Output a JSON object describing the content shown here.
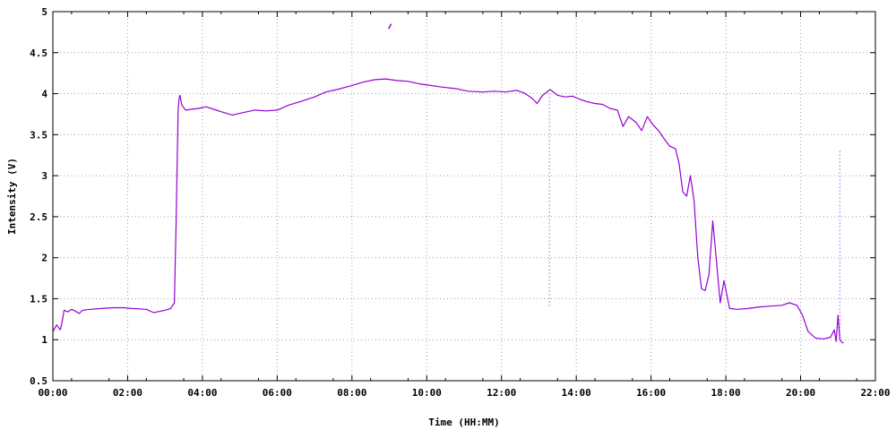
{
  "chart_data": {
    "type": "line",
    "xlabel": "Time (HH:MM)",
    "ylabel": "Intensity (V)",
    "xlim": [
      0,
      22
    ],
    "ylim": [
      0.5,
      5
    ],
    "x_ticks": [
      {
        "value": 0,
        "label": "00:00"
      },
      {
        "value": 2,
        "label": "02:00"
      },
      {
        "value": 4,
        "label": "04:00"
      },
      {
        "value": 6,
        "label": "06:00"
      },
      {
        "value": 8,
        "label": "08:00"
      },
      {
        "value": 10,
        "label": "10:00"
      },
      {
        "value": 12,
        "label": "12:00"
      },
      {
        "value": 14,
        "label": "14:00"
      },
      {
        "value": 16,
        "label": "16:00"
      },
      {
        "value": 18,
        "label": "18:00"
      },
      {
        "value": 20,
        "label": "20:00"
      },
      {
        "value": 22,
        "label": "22:00"
      }
    ],
    "y_ticks": [
      {
        "value": 0.5,
        "label": "0.5"
      },
      {
        "value": 1,
        "label": "1"
      },
      {
        "value": 1.5,
        "label": "1.5"
      },
      {
        "value": 2,
        "label": "2"
      },
      {
        "value": 2.5,
        "label": "2.5"
      },
      {
        "value": 3,
        "label": "3"
      },
      {
        "value": 3.5,
        "label": "3.5"
      },
      {
        "value": 4,
        "label": "4"
      },
      {
        "value": 4.5,
        "label": "4.5"
      },
      {
        "value": 5,
        "label": "5"
      }
    ],
    "grid": true,
    "legend": "none",
    "series_color": "#9400d3",
    "series": [
      {
        "x": [
          0.0,
          0.1,
          0.2,
          0.25,
          0.3,
          0.4,
          0.5,
          0.6,
          0.7,
          0.8,
          1.0,
          1.3,
          1.6,
          1.9,
          2.1,
          2.5,
          2.7,
          2.8,
          3.0,
          3.15,
          3.25,
          3.3,
          3.35,
          3.38,
          3.4,
          3.45,
          3.55,
          3.7,
          3.9,
          4.1,
          4.3,
          4.5,
          4.8,
          5.1,
          5.4,
          5.7,
          6.0,
          6.3,
          6.6,
          7.0,
          7.3,
          7.6,
          8.0,
          8.3,
          8.6,
          8.9,
          9.2,
          9.5,
          9.8,
          10.1,
          10.4,
          10.8,
          11.1,
          11.5,
          11.8,
          12.1,
          12.4,
          12.6,
          12.8,
          12.95,
          13.1,
          13.3,
          13.5,
          13.7,
          13.9,
          14.1,
          14.3,
          14.5,
          14.7,
          14.9,
          15.1,
          15.25,
          15.4,
          15.6,
          15.75,
          15.9,
          16.05,
          16.2,
          16.35,
          16.5,
          16.65,
          16.75,
          16.85,
          16.95,
          17.05,
          17.15,
          17.25,
          17.35,
          17.45,
          17.55,
          17.65,
          17.75,
          17.85,
          17.95,
          18.1,
          18.3,
          18.6,
          18.9,
          19.2,
          19.5,
          19.7,
          19.9,
          20.05,
          20.2,
          20.4,
          20.6,
          20.8,
          20.9,
          20.95,
          21.0,
          21.05,
          21.1,
          21.15
        ],
        "y": [
          1.1,
          1.18,
          1.12,
          1.22,
          1.36,
          1.34,
          1.37,
          1.35,
          1.32,
          1.36,
          1.37,
          1.38,
          1.39,
          1.39,
          1.38,
          1.37,
          1.33,
          1.34,
          1.36,
          1.38,
          1.45,
          2.5,
          3.8,
          3.95,
          3.98,
          3.86,
          3.8,
          3.81,
          3.82,
          3.84,
          3.81,
          3.78,
          3.74,
          3.77,
          3.8,
          3.79,
          3.8,
          3.86,
          3.9,
          3.96,
          4.02,
          4.05,
          4.1,
          4.14,
          4.17,
          4.18,
          4.16,
          4.15,
          4.12,
          4.1,
          4.08,
          4.06,
          4.03,
          4.02,
          4.03,
          4.02,
          4.04,
          4.01,
          3.95,
          3.88,
          3.98,
          4.05,
          3.98,
          3.96,
          3.97,
          3.93,
          3.9,
          3.88,
          3.87,
          3.82,
          3.8,
          3.6,
          3.72,
          3.65,
          3.55,
          3.72,
          3.62,
          3.55,
          3.45,
          3.36,
          3.33,
          3.15,
          2.8,
          2.75,
          3.0,
          2.7,
          2.0,
          1.62,
          1.6,
          1.8,
          2.45,
          1.95,
          1.45,
          1.72,
          1.38,
          1.37,
          1.38,
          1.4,
          1.41,
          1.42,
          1.45,
          1.42,
          1.3,
          1.1,
          1.02,
          1.01,
          1.03,
          1.12,
          0.98,
          1.3,
          1.0,
          0.97,
          0.96
        ]
      }
    ],
    "segments": [
      {
        "x": [
          8.98,
          9.05
        ],
        "y": [
          4.79,
          4.85
        ]
      }
    ],
    "outliers": [
      {
        "x": 13.28,
        "y_top": 4.0,
        "y_bottom": 1.4
      },
      {
        "x": 21.05,
        "y_top": 3.3,
        "y_bottom": 1.0
      }
    ]
  }
}
